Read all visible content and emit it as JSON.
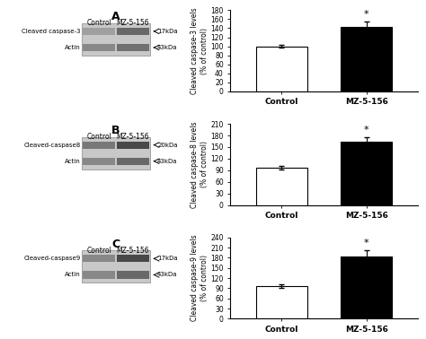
{
  "chart_data": [
    {
      "type": "blot",
      "title": "A",
      "categories": [
        "Control",
        "MZ-5-156"
      ],
      "color": "#c8c8c8",
      "series": [
        {
          "name": "Cleaved caspase-3",
          "colors": [
            "#a0a0a0",
            "#686868"
          ]
        },
        {
          "name": "Actin",
          "colors": [
            "#888888",
            "#707070"
          ]
        }
      ],
      "annotations": [
        "17kDa",
        "43kDa"
      ]
    },
    {
      "type": "bar",
      "categories": [
        "Control",
        "MZ-5-156"
      ],
      "values": [
        100,
        143
      ],
      "errors": [
        3,
        12
      ],
      "colors": [
        "white",
        "black"
      ],
      "ylim": [
        0,
        180
      ],
      "yticks": [
        0,
        20,
        40,
        60,
        80,
        100,
        120,
        140,
        160,
        180
      ],
      "ylabel": "Cleaved caspase-3 levels\n(% of control)",
      "annotations": [
        {
          "text": "*",
          "category": "MZ-5-156"
        }
      ]
    },
    {
      "type": "blot",
      "title": "B",
      "categories": [
        "Control",
        "MZ-5-156"
      ],
      "color": "#c8c8c8",
      "series": [
        {
          "name": "Cleaved-caspase8",
          "colors": [
            "#787878",
            "#484848"
          ]
        },
        {
          "name": "Actin",
          "colors": [
            "#888888",
            "#686868"
          ]
        }
      ],
      "annotations": [
        "20kDa",
        "43kDa"
      ]
    },
    {
      "type": "bar",
      "categories": [
        "Control",
        "MZ-5-156"
      ],
      "values": [
        97,
        163
      ],
      "errors": [
        4,
        13
      ],
      "colors": [
        "white",
        "black"
      ],
      "ylim": [
        0,
        210
      ],
      "yticks": [
        0,
        30,
        60,
        90,
        120,
        150,
        180,
        210
      ],
      "ylabel": "Cleaved caspase-8 levels\n(% of control)",
      "annotations": [
        {
          "text": "*",
          "category": "MZ-5-156"
        }
      ]
    },
    {
      "type": "blot",
      "title": "C",
      "categories": [
        "Control",
        "MZ-5-156"
      ],
      "color": "#c8c8c8",
      "series": [
        {
          "name": "Cleaved-caspase9",
          "colors": [
            "#888888",
            "#484848"
          ]
        },
        {
          "name": "Actin",
          "colors": [
            "#888888",
            "#686868"
          ]
        }
      ],
      "annotations": [
        "17kDa",
        "43kDa"
      ]
    },
    {
      "type": "bar",
      "categories": [
        "Control",
        "MZ-5-156"
      ],
      "values": [
        97,
        183
      ],
      "errors": [
        5,
        20
      ],
      "colors": [
        "white",
        "black"
      ],
      "ylim": [
        0,
        240
      ],
      "yticks": [
        0,
        30,
        60,
        90,
        120,
        150,
        180,
        210,
        240
      ],
      "ylabel": "Cleaved caspase-9 levels\n(% of control)",
      "annotations": [
        {
          "text": "*",
          "category": "MZ-5-156"
        }
      ]
    }
  ]
}
